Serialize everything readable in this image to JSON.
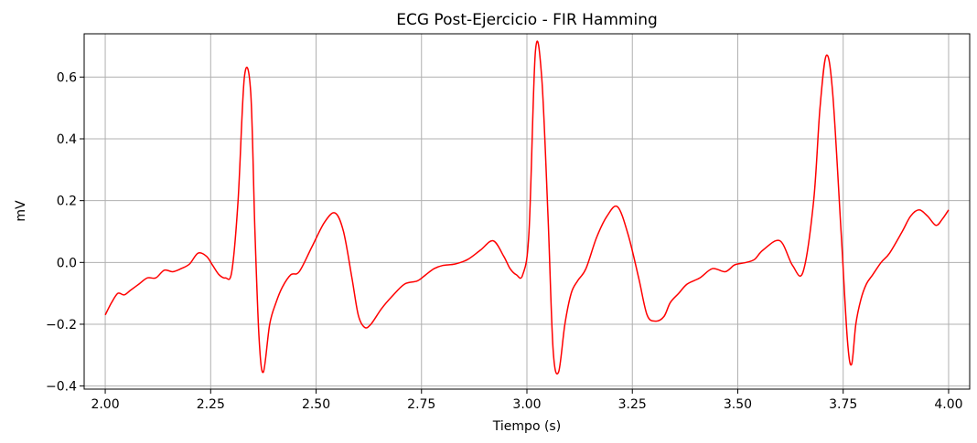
{
  "chart_data": {
    "type": "line",
    "title": "ECG Post-Ejercicio - FIR Hamming",
    "xlabel": "Tiempo (s)",
    "ylabel": "mV",
    "xlim": [
      1.95,
      4.05
    ],
    "ylim": [
      -0.41,
      0.74
    ],
    "xticks": [
      "2.00",
      "2.25",
      "2.50",
      "2.75",
      "3.00",
      "3.25",
      "3.50",
      "3.75",
      "4.00"
    ],
    "xtick_values": [
      2.0,
      2.25,
      2.5,
      2.75,
      3.0,
      3.25,
      3.5,
      3.75,
      4.0
    ],
    "yticks": [
      "−0.4",
      "−0.2",
      "0.0",
      "0.2",
      "0.4",
      "0.6"
    ],
    "ytick_values": [
      -0.4,
      -0.2,
      0.0,
      0.2,
      0.4,
      0.6
    ],
    "grid": true,
    "series": [
      {
        "color": "#ff0000",
        "x": [
          2.0,
          2.015,
          2.03,
          2.045,
          2.06,
          2.08,
          2.1,
          2.12,
          2.14,
          2.16,
          2.18,
          2.2,
          2.22,
          2.24,
          2.255,
          2.27,
          2.285,
          2.3,
          2.315,
          2.33,
          2.345,
          2.355,
          2.365,
          2.375,
          2.39,
          2.405,
          2.42,
          2.44,
          2.46,
          2.49,
          2.52,
          2.545,
          2.565,
          2.585,
          2.6,
          2.615,
          2.63,
          2.655,
          2.68,
          2.71,
          2.74,
          2.76,
          2.78,
          2.8,
          2.83,
          2.86,
          2.89,
          2.92,
          2.945,
          2.96,
          2.975,
          2.99,
          3.005,
          3.02,
          3.035,
          3.05,
          3.062,
          3.075,
          3.09,
          3.105,
          3.12,
          3.14,
          3.165,
          3.19,
          3.215,
          3.24,
          3.265,
          3.285,
          3.305,
          3.325,
          3.34,
          3.36,
          3.38,
          3.41,
          3.44,
          3.47,
          3.49,
          3.5,
          3.52,
          3.54,
          3.56,
          3.6,
          3.63,
          3.655,
          3.68,
          3.695,
          3.71,
          3.725,
          3.745,
          3.76,
          3.77,
          3.78,
          3.792,
          3.805,
          3.82,
          3.84,
          3.86,
          3.89,
          3.91,
          3.93,
          3.95,
          3.97,
          3.985,
          4.0
        ],
        "y": [
          -0.17,
          -0.13,
          -0.1,
          -0.105,
          -0.09,
          -0.07,
          -0.05,
          -0.05,
          -0.025,
          -0.03,
          -0.02,
          -0.005,
          0.03,
          0.02,
          -0.01,
          -0.04,
          -0.05,
          -0.03,
          0.2,
          0.6,
          0.55,
          0.1,
          -0.25,
          -0.355,
          -0.2,
          -0.13,
          -0.08,
          -0.04,
          -0.03,
          0.05,
          0.13,
          0.16,
          0.1,
          -0.05,
          -0.17,
          -0.21,
          -0.2,
          -0.15,
          -0.11,
          -0.07,
          -0.06,
          -0.04,
          -0.02,
          -0.01,
          -0.005,
          0.01,
          0.04,
          0.07,
          0.02,
          -0.02,
          -0.04,
          -0.04,
          0.1,
          0.68,
          0.6,
          0.15,
          -0.28,
          -0.355,
          -0.2,
          -0.1,
          -0.06,
          -0.02,
          0.08,
          0.15,
          0.18,
          0.09,
          -0.05,
          -0.17,
          -0.19,
          -0.175,
          -0.13,
          -0.1,
          -0.07,
          -0.05,
          -0.02,
          -0.03,
          -0.01,
          -0.005,
          0.0,
          0.01,
          0.04,
          0.07,
          -0.01,
          -0.03,
          0.2,
          0.5,
          0.67,
          0.55,
          0.1,
          -0.25,
          -0.33,
          -0.2,
          -0.12,
          -0.07,
          -0.04,
          0.0,
          0.03,
          0.1,
          0.15,
          0.17,
          0.15,
          0.12,
          0.14,
          0.17
        ]
      }
    ]
  }
}
